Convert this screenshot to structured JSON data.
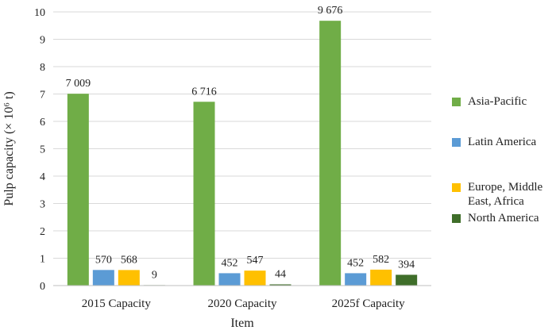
{
  "chart_data": {
    "type": "bar",
    "title": "",
    "xlabel": "Item",
    "ylabel": "Pulp capacity (× 10⁶ t)",
    "categories": [
      "2015 Capacity",
      "2020 Capacity",
      "2025f Capacity"
    ],
    "ylim": [
      0,
      10
    ],
    "yticks": [
      0,
      1,
      2,
      3,
      4,
      5,
      6,
      7,
      8,
      9,
      10
    ],
    "grid": true,
    "legend_position": "right",
    "series": [
      {
        "name": "Asia-Pacific",
        "color": "#70ad47",
        "values": [
          7.009,
          6.716,
          9.676
        ],
        "labels": [
          "7 009",
          "6 716",
          "9 676"
        ]
      },
      {
        "name": "Latin America",
        "color": "#5b9bd5",
        "values": [
          0.57,
          0.452,
          0.452
        ],
        "labels": [
          "570",
          "452",
          "452"
        ]
      },
      {
        "name": "Europe, Middle East, Africa",
        "color": "#ffc000",
        "values": [
          0.568,
          0.547,
          0.582
        ],
        "labels": [
          "568",
          "547",
          "582"
        ]
      },
      {
        "name": "North America",
        "color": "#3f6e2a",
        "values": [
          0.009,
          0.044,
          0.394
        ],
        "labels": [
          "9",
          "44",
          "394"
        ]
      }
    ]
  }
}
